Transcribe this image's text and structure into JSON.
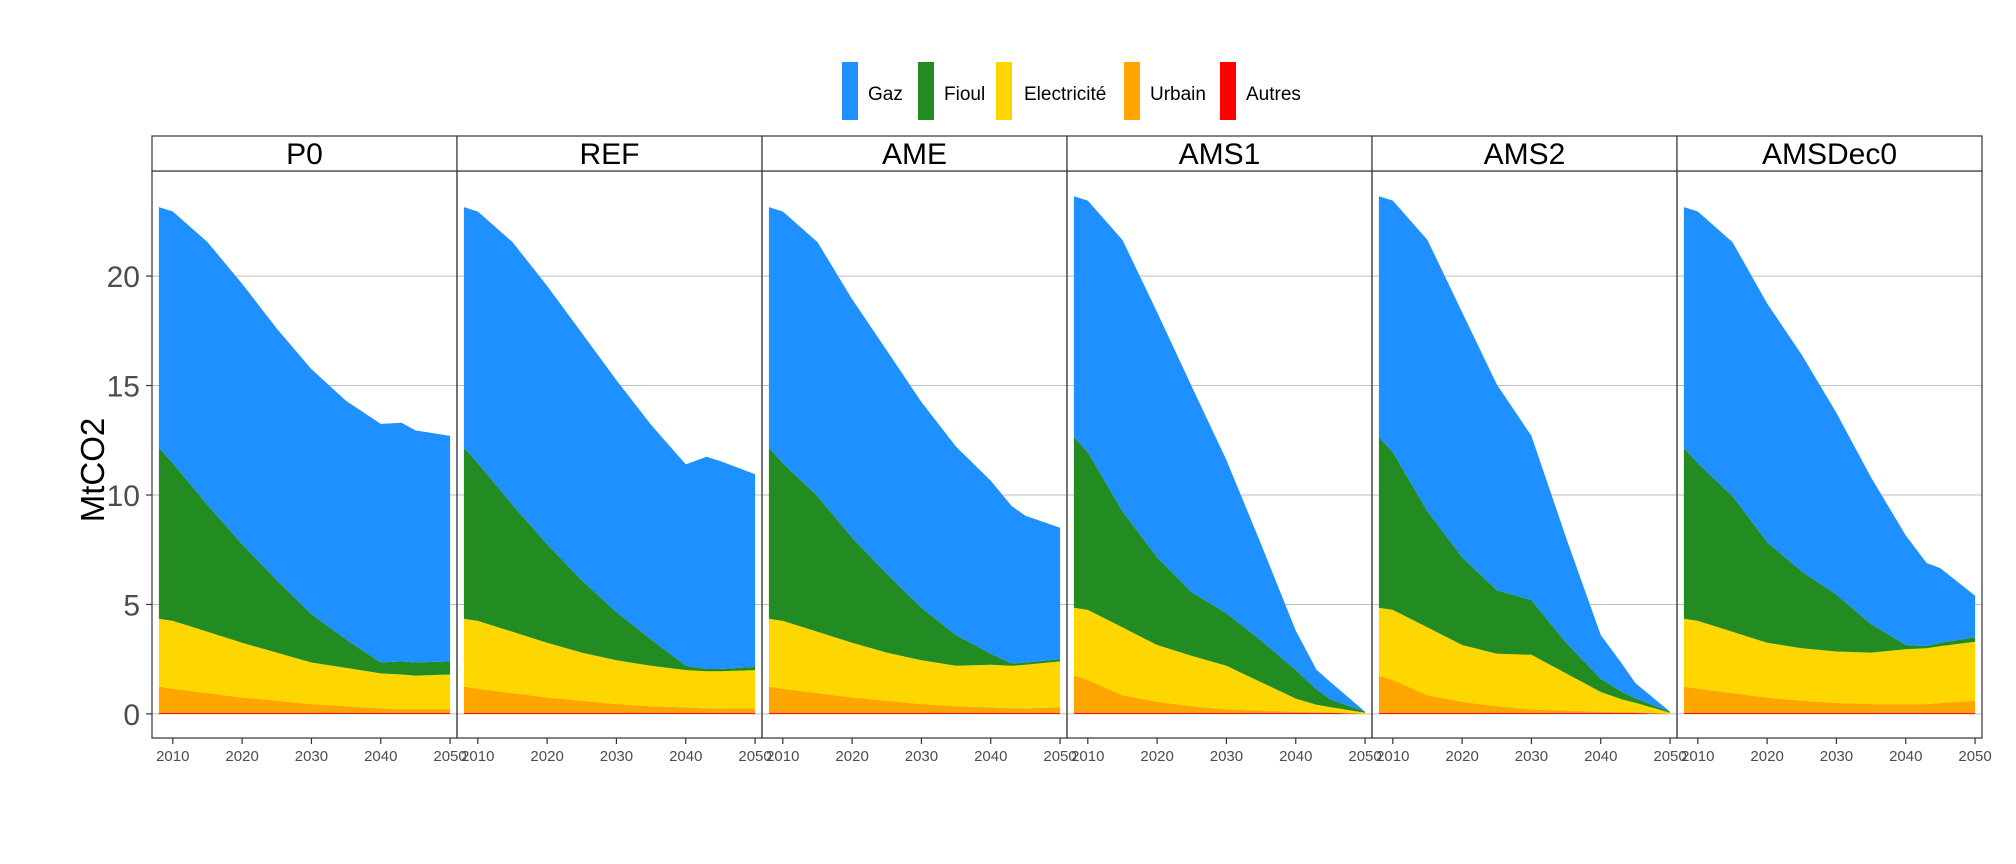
{
  "chart_data": {
    "type": "area",
    "stacked": true,
    "ylabel": "MtCO2",
    "xlabel": "",
    "ylim": [
      -1.1,
      24.8
    ],
    "yticks": [
      0,
      5,
      10,
      15,
      20
    ],
    "xlim": [
      2007,
      2051
    ],
    "xticks": [
      2010,
      2020,
      2030,
      2040,
      2050
    ],
    "grid": true,
    "legend_position": "top",
    "x": [
      2008,
      2010,
      2015,
      2020,
      2025,
      2030,
      2035,
      2040,
      2043,
      2045,
      2050
    ],
    "series_names": [
      "Gaz",
      "Fioul",
      "Electricité",
      "Urbain",
      "Autres"
    ],
    "series_colors": [
      "#1E90FF",
      "#228B22",
      "#FFD700",
      "#FFA500",
      "#FF0000"
    ],
    "panels": [
      {
        "label": "P0",
        "values": {
          "Autres": [
            0.05,
            0.05,
            0.05,
            0.05,
            0.05,
            0.05,
            0.05,
            0.05,
            0.05,
            0.05,
            0.05
          ],
          "Urbain": [
            1.2,
            1.1,
            0.9,
            0.7,
            0.55,
            0.4,
            0.3,
            0.2,
            0.15,
            0.15,
            0.15
          ],
          "Electricité": [
            3.1,
            3.1,
            2.8,
            2.5,
            2.2,
            1.9,
            1.75,
            1.6,
            1.6,
            1.55,
            1.6
          ],
          "Fioul": [
            7.8,
            7.2,
            5.8,
            4.5,
            3.3,
            2.2,
            1.3,
            0.5,
            0.6,
            0.6,
            0.6
          ],
          "Gaz": [
            11.0,
            11.5,
            12.0,
            11.9,
            11.5,
            11.2,
            10.9,
            10.9,
            10.9,
            10.6,
            10.3
          ]
        }
      },
      {
        "label": "REF",
        "values": {
          "Autres": [
            0.05,
            0.05,
            0.05,
            0.05,
            0.05,
            0.05,
            0.05,
            0.05,
            0.05,
            0.05,
            0.05
          ],
          "Urbain": [
            1.2,
            1.1,
            0.9,
            0.7,
            0.55,
            0.4,
            0.3,
            0.25,
            0.2,
            0.2,
            0.2
          ],
          "Electricité": [
            3.1,
            3.1,
            2.8,
            2.5,
            2.2,
            2.0,
            1.85,
            1.7,
            1.7,
            1.7,
            1.75
          ],
          "Fioul": [
            7.8,
            7.2,
            5.8,
            4.5,
            3.3,
            2.2,
            1.2,
            0.2,
            0.1,
            0.1,
            0.15
          ],
          "Gaz": [
            11.0,
            11.5,
            12.0,
            11.8,
            11.3,
            10.6,
            9.8,
            9.2,
            9.7,
            9.5,
            8.8
          ]
        }
      },
      {
        "label": "AME",
        "values": {
          "Autres": [
            0.05,
            0.05,
            0.05,
            0.05,
            0.05,
            0.05,
            0.05,
            0.05,
            0.05,
            0.05,
            0.05
          ],
          "Urbain": [
            1.2,
            1.1,
            0.9,
            0.7,
            0.55,
            0.4,
            0.3,
            0.25,
            0.2,
            0.2,
            0.25
          ],
          "Electricité": [
            3.1,
            3.1,
            2.8,
            2.5,
            2.2,
            2.0,
            1.85,
            1.95,
            1.95,
            2.0,
            2.1
          ],
          "Fioul": [
            7.8,
            7.2,
            6.2,
            4.8,
            3.6,
            2.4,
            1.4,
            0.5,
            0.1,
            0.1,
            0.1
          ],
          "Gaz": [
            11.0,
            11.5,
            11.6,
            10.9,
            10.2,
            9.4,
            8.6,
            7.9,
            7.2,
            6.7,
            6.0
          ]
        }
      },
      {
        "label": "AMS1",
        "values": {
          "Autres": [
            0.05,
            0.05,
            0.05,
            0.05,
            0.05,
            0.05,
            0.05,
            0.05,
            0.05,
            0.05,
            0.0
          ],
          "Urbain": [
            1.7,
            1.5,
            0.8,
            0.5,
            0.3,
            0.15,
            0.1,
            0.05,
            0.02,
            0.01,
            0.0
          ],
          "Electricité": [
            3.1,
            3.2,
            3.1,
            2.6,
            2.3,
            2.0,
            1.3,
            0.6,
            0.35,
            0.25,
            0.05
          ],
          "Fioul": [
            7.8,
            7.2,
            5.3,
            4.0,
            2.9,
            2.4,
            1.9,
            1.3,
            0.7,
            0.35,
            0.05
          ],
          "Gaz": [
            11.0,
            11.5,
            12.4,
            11.2,
            9.4,
            7.0,
            4.4,
            1.8,
            0.9,
            0.8,
            0.0
          ]
        }
      },
      {
        "label": "AMS2",
        "values": {
          "Autres": [
            0.05,
            0.05,
            0.05,
            0.05,
            0.05,
            0.05,
            0.05,
            0.05,
            0.05,
            0.05,
            0.0
          ],
          "Urbain": [
            1.7,
            1.5,
            0.8,
            0.5,
            0.3,
            0.15,
            0.1,
            0.05,
            0.02,
            0.01,
            0.0
          ],
          "Electricité": [
            3.1,
            3.2,
            3.1,
            2.6,
            2.4,
            2.5,
            1.7,
            0.9,
            0.6,
            0.45,
            0.05
          ],
          "Fioul": [
            7.8,
            7.2,
            5.3,
            4.0,
            2.9,
            2.5,
            1.4,
            0.6,
            0.35,
            0.2,
            0.05
          ],
          "Gaz": [
            11.0,
            11.5,
            12.4,
            11.2,
            9.4,
            7.5,
            4.8,
            2.0,
            1.3,
            0.7,
            0.0
          ]
        }
      },
      {
        "label": "AMSDec0",
        "values": {
          "Autres": [
            0.05,
            0.05,
            0.05,
            0.05,
            0.05,
            0.05,
            0.05,
            0.05,
            0.05,
            0.05,
            0.05
          ],
          "Urbain": [
            1.2,
            1.1,
            0.9,
            0.7,
            0.55,
            0.45,
            0.4,
            0.4,
            0.4,
            0.45,
            0.55
          ],
          "Electricité": [
            3.1,
            3.1,
            2.8,
            2.5,
            2.4,
            2.35,
            2.35,
            2.5,
            2.55,
            2.6,
            2.7
          ],
          "Fioul": [
            7.8,
            7.2,
            6.2,
            4.6,
            3.5,
            2.6,
            1.3,
            0.2,
            0.1,
            0.15,
            0.2
          ],
          "Gaz": [
            11.0,
            11.5,
            11.6,
            10.9,
            9.9,
            8.3,
            6.7,
            5.0,
            3.8,
            3.4,
            1.9
          ]
        }
      }
    ]
  }
}
